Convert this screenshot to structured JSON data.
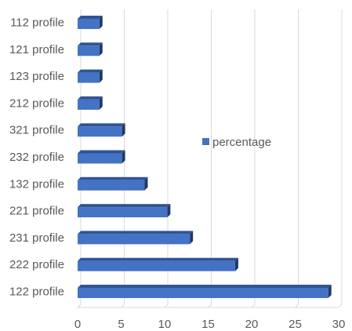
{
  "chart_data": {
    "type": "bar",
    "orientation": "horizontal",
    "categories": [
      "112 profile",
      "121 profile",
      "123 profile",
      "212 profile",
      "321 profile",
      "232 profile",
      "132 profile",
      "221 profile",
      "231 profile",
      "222 profile",
      "122 profile"
    ],
    "series": [
      {
        "name": "percentage",
        "values": [
          2.5,
          2.5,
          2.5,
          2.5,
          5.1,
          5.1,
          7.7,
          10.3,
          12.9,
          18.1,
          28.8
        ]
      }
    ],
    "xlim": [
      0,
      30
    ],
    "xticks": [
      0,
      5,
      10,
      15,
      20,
      25,
      30
    ],
    "grid": "vertical",
    "legend_position": "right",
    "colors": {
      "bar_front": "#4472c4",
      "bar_top": "#2f5597",
      "bar_side": "#203864",
      "grid": "#d9d9d9",
      "text": "#595959"
    }
  }
}
